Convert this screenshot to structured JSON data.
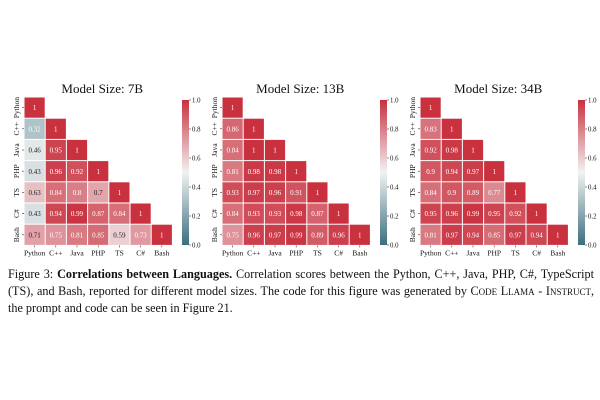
{
  "chart_data": [
    {
      "type": "heatmap",
      "title": "Model Size: 7B",
      "categories": [
        "Python",
        "C++",
        "Java",
        "PHP",
        "TS",
        "C#",
        "Bash"
      ],
      "values": [
        [
          1
        ],
        [
          0.32,
          1
        ],
        [
          0.46,
          0.95,
          1
        ],
        [
          0.43,
          0.96,
          0.92,
          1
        ],
        [
          0.63,
          0.84,
          0.8,
          0.7,
          1
        ],
        [
          0.43,
          0.94,
          0.99,
          0.87,
          0.84,
          1
        ],
        [
          0.71,
          0.75,
          0.81,
          0.85,
          0.59,
          0.73,
          1
        ]
      ],
      "colorbar": {
        "min": 0.0,
        "max": 1.0,
        "ticks": [
          "0.0",
          "0.2",
          "0.4",
          "0.6",
          "0.8",
          "1.0"
        ]
      }
    },
    {
      "type": "heatmap",
      "title": "Model Size: 13B",
      "categories": [
        "Python",
        "C++",
        "Java",
        "PHP",
        "TS",
        "C#",
        "Bash"
      ],
      "values": [
        [
          1
        ],
        [
          0.86,
          1
        ],
        [
          0.84,
          1,
          1
        ],
        [
          0.81,
          0.98,
          0.98,
          1
        ],
        [
          0.93,
          0.97,
          0.96,
          0.91,
          1
        ],
        [
          0.84,
          0.93,
          0.93,
          0.98,
          0.87,
          1
        ],
        [
          0.75,
          0.96,
          0.97,
          0.99,
          0.89,
          0.96,
          1
        ]
      ],
      "colorbar": {
        "min": 0.0,
        "max": 1.0,
        "ticks": [
          "0.0",
          "0.2",
          "0.4",
          "0.6",
          "0.8",
          "1.0"
        ]
      }
    },
    {
      "type": "heatmap",
      "title": "Model Size: 34B",
      "categories": [
        "Python",
        "C++",
        "Java",
        "PHP",
        "TS",
        "C#",
        "Bash"
      ],
      "values": [
        [
          1
        ],
        [
          0.83,
          1
        ],
        [
          0.92,
          0.98,
          1
        ],
        [
          0.9,
          0.94,
          0.97,
          1
        ],
        [
          0.84,
          0.9,
          0.89,
          0.77,
          1
        ],
        [
          0.95,
          0.96,
          0.99,
          0.95,
          0.92,
          1
        ],
        [
          0.81,
          0.97,
          0.94,
          0.85,
          0.97,
          0.94,
          1
        ]
      ],
      "colorbar": {
        "min": 0.0,
        "max": 1.0,
        "ticks": [
          "0.0",
          "0.2",
          "0.4",
          "0.6",
          "0.8",
          "1.0"
        ]
      }
    }
  ],
  "caption": {
    "label": "Figure 3:",
    "bold": "Correlations between Languages.",
    "text1": "Correlation scores between the Python, C++, Java, PHP, C#, TypeScript (TS), and Bash, reported for different model sizes. The code for this figure was generated by",
    "sc": "Code Llama - Instruct",
    "text2": ", the prompt and code can be seen in Figure 21."
  },
  "colors": {
    "low": "#3b6f7f",
    "mid": "#f2f2f2",
    "high": "#c9313f"
  }
}
